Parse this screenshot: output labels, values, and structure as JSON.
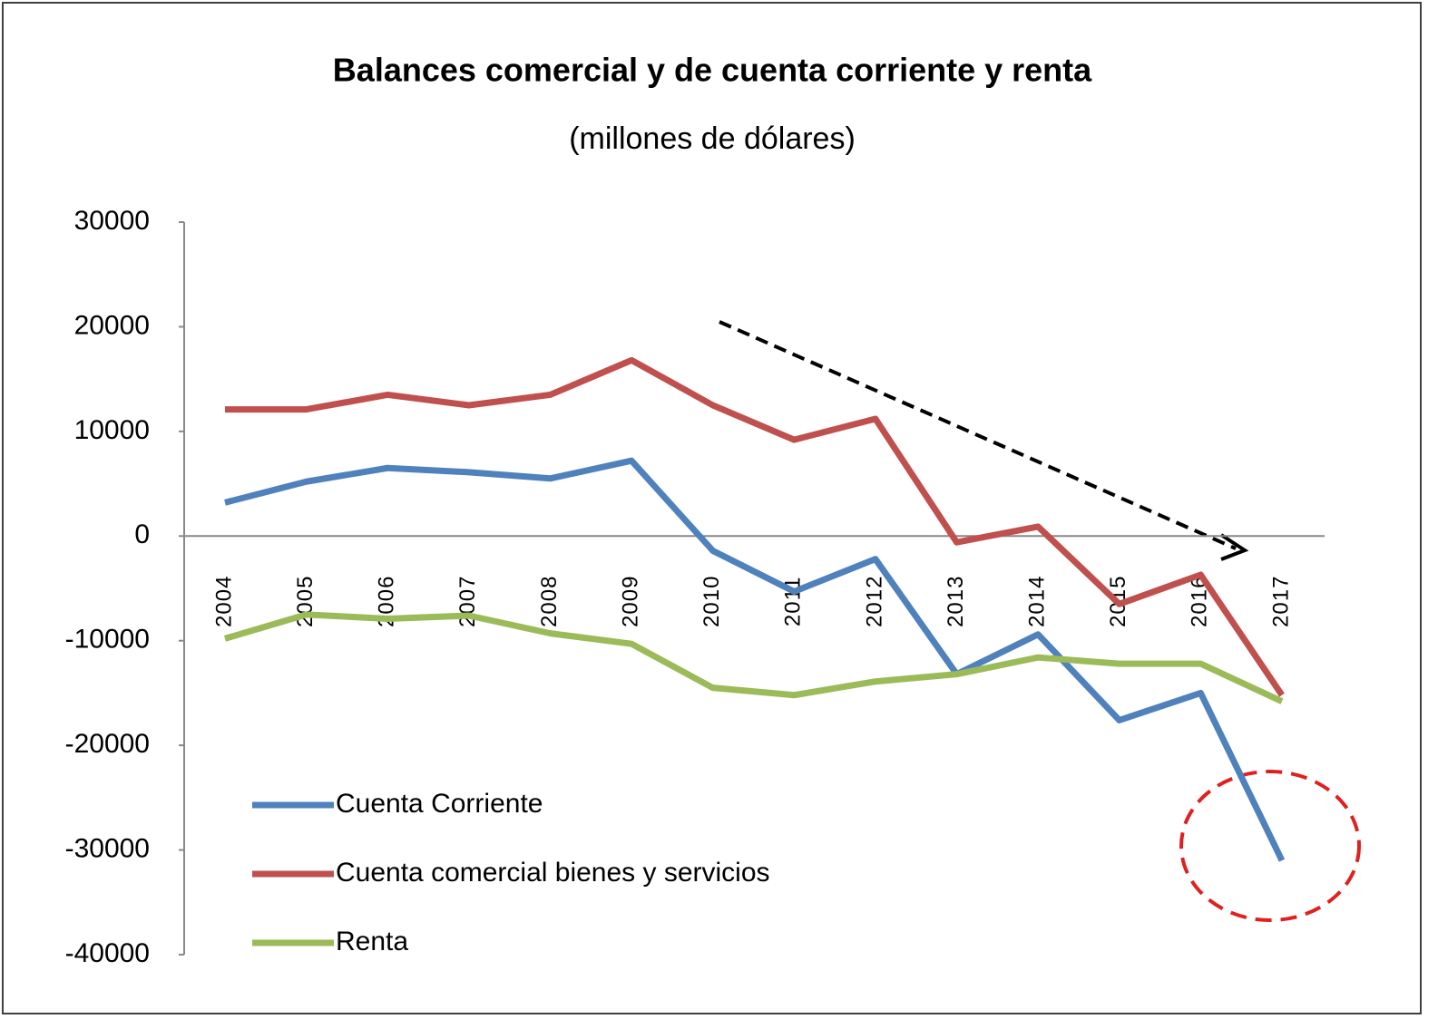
{
  "chart_data": {
    "type": "line",
    "title": "Balances comercial y de cuenta corriente y renta",
    "subtitle": "(millones de dólares)",
    "categories": [
      "2004",
      "2005",
      "2006",
      "2007",
      "2008",
      "2009",
      "2010",
      "2011",
      "2012",
      "2013",
      "2014",
      "2015",
      "2016",
      "2017"
    ],
    "series": [
      {
        "name": "Cuenta Corriente",
        "color": "#4f81bd",
        "values": [
          3200,
          5200,
          6500,
          6100,
          5500,
          7200,
          -1400,
          -5300,
          -2200,
          -13200,
          -9400,
          -17600,
          -15000,
          -31000
        ]
      },
      {
        "name": "Cuenta comercial bienes y servicios",
        "color": "#c0504d",
        "values": [
          12100,
          12100,
          13500,
          12500,
          13500,
          16800,
          12500,
          9200,
          11200,
          -600,
          900,
          -6500,
          -3700,
          -15200
        ]
      },
      {
        "name": "Renta",
        "color": "#9bbb59",
        "values": [
          -9800,
          -7500,
          -7900,
          -7600,
          -9300,
          -10300,
          -14500,
          -15200,
          -13900,
          -13200,
          -11600,
          -12200,
          -12200,
          -15800
        ]
      }
    ],
    "ylim": [
      -40000,
      30000
    ],
    "yticks": [
      -40000,
      -30000,
      -20000,
      -10000,
      0,
      10000,
      20000,
      30000
    ],
    "legend": "lower left"
  }
}
